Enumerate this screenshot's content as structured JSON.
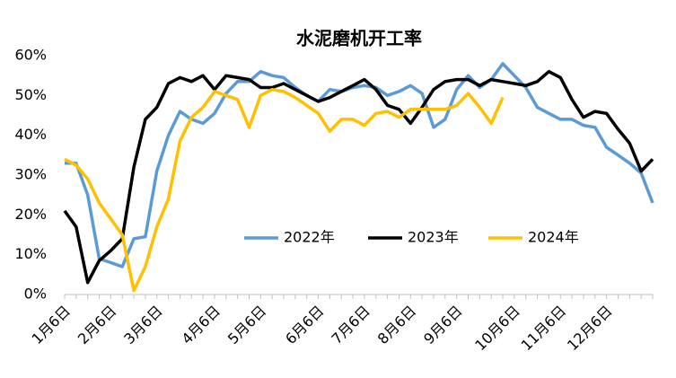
{
  "chart_data": {
    "type": "line",
    "title": "水泥磨机开工率",
    "categories": [
      "1月6日",
      null,
      null,
      null,
      "2月6日",
      null,
      null,
      null,
      "3月6日",
      null,
      null,
      null,
      null,
      "4月6日",
      null,
      null,
      null,
      "5月6日",
      null,
      null,
      null,
      null,
      "6月6日",
      null,
      null,
      null,
      "7月6日",
      null,
      null,
      null,
      "8月6日",
      null,
      null,
      null,
      "9月6日",
      null,
      null,
      null,
      null,
      "10月6日",
      null,
      null,
      null,
      "11月6日",
      null,
      null,
      null,
      "12月6日",
      null,
      null,
      null,
      null
    ],
    "series": [
      {
        "name": "2022年",
        "color": "#5b9bd5",
        "values": [
          33,
          33,
          25,
          9,
          8,
          7,
          14,
          14.5,
          31,
          40,
          46,
          44,
          43,
          45.5,
          50.5,
          53.5,
          53.5,
          56,
          55,
          54.5,
          52,
          50,
          48.5,
          51.5,
          51,
          52,
          52.5,
          52,
          50,
          51,
          52.5,
          50.5,
          42,
          44,
          51.5,
          55,
          52,
          54,
          58,
          55,
          52,
          47,
          45.5,
          44,
          44,
          42.5,
          42,
          37,
          35,
          33,
          30.5,
          23
        ]
      },
      {
        "name": "2023年",
        "color": "#000000",
        "values": [
          21,
          17,
          3,
          8.5,
          11,
          14,
          32,
          44,
          47,
          53,
          54.5,
          53.5,
          55,
          51.5,
          55,
          54.5,
          54,
          52,
          52,
          53,
          51.5,
          50,
          48.5,
          49.5,
          51,
          52.5,
          54,
          51.5,
          47.5,
          46.5,
          43,
          47,
          51.5,
          53.5,
          54,
          54,
          52.5,
          54,
          53.5,
          53,
          52.5,
          53.5,
          56,
          54.5,
          49,
          44.5,
          46,
          45.5,
          41.5,
          38,
          31,
          34
        ]
      },
      {
        "name": "2024年",
        "color": "#ffc000",
        "values": [
          34,
          32.5,
          29,
          23,
          19,
          15,
          1,
          7,
          17,
          24,
          38.5,
          44.5,
          47,
          51,
          50,
          49,
          42,
          50,
          51.5,
          51,
          49.5,
          47.5,
          45.5,
          41,
          44,
          44,
          42.5,
          45.5,
          46,
          44.5,
          46.5,
          46.5,
          46.5,
          46.5,
          47.5,
          50.5,
          47,
          43,
          49.5,
          null,
          null,
          null,
          null,
          null,
          null,
          null,
          null,
          null,
          null,
          null,
          null,
          null
        ]
      }
    ],
    "ylim": [
      0,
      60
    ],
    "yticks": [
      {
        "value": 0,
        "label": "0%"
      },
      {
        "value": 10,
        "label": "10%"
      },
      {
        "value": 20,
        "label": "20%"
      },
      {
        "value": 30,
        "label": "30%"
      },
      {
        "value": 40,
        "label": "40%"
      },
      {
        "value": 50,
        "label": "50%"
      },
      {
        "value": 60,
        "label": "60%"
      }
    ],
    "grid": false
  }
}
